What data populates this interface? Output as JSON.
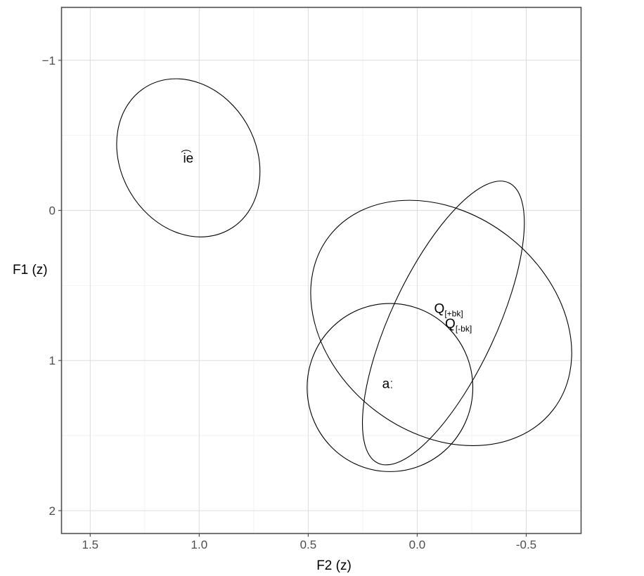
{
  "chart_data": {
    "type": "scatter",
    "title": "",
    "xlabel": "F2 (z)",
    "ylabel": "F1 (z)",
    "xlim": [
      1.63,
      -0.75
    ],
    "ylim": [
      -1.35,
      2.15
    ],
    "x_reversed": true,
    "y_reversed": true,
    "grid": true,
    "x_ticks": [
      {
        "value": 1.5,
        "label": "1.5"
      },
      {
        "value": 1.0,
        "label": "1.0"
      },
      {
        "value": 0.5,
        "label": "0.5"
      },
      {
        "value": 0.0,
        "label": "0.0"
      },
      {
        "value": -0.5,
        "label": "-0.5"
      }
    ],
    "y_ticks": [
      {
        "value": -1,
        "label": "−1"
      },
      {
        "value": 0,
        "label": "0"
      },
      {
        "value": 1,
        "label": "1"
      },
      {
        "value": 2,
        "label": "2"
      }
    ],
    "ellipses": [
      {
        "name": "ie",
        "center_x": 1.05,
        "center_y": -0.35,
        "x_half_width": 0.31,
        "y_half_height": 0.55,
        "rotation_deg": -30
      },
      {
        "name": "a",
        "center_x": 0.125,
        "center_y": 1.18,
        "x_half_width": 0.38,
        "y_half_height": 0.56,
        "rotation_deg": 0
      },
      {
        "name": "Q+bk",
        "center_x": -0.11,
        "center_y": 0.75,
        "x_half_width": 0.65,
        "y_half_height": 0.73,
        "rotation_deg": 38
      },
      {
        "name": "Q-bk",
        "center_x": -0.12,
        "center_y": 0.75,
        "x_half_width": 0.71,
        "y_half_height": 0.35,
        "rotation_deg": -65
      }
    ],
    "points": [
      {
        "label": "i͡e",
        "sub": "",
        "x": 1.05,
        "y": -0.35
      },
      {
        "label": "aː",
        "sub": "",
        "x": 0.135,
        "y": 1.15
      },
      {
        "label": "Q",
        "sub": "[+bk]",
        "x": -0.11,
        "y": 0.65
      },
      {
        "label": "Q",
        "sub": "[-bk]",
        "x": -0.16,
        "y": 0.75
      }
    ]
  }
}
